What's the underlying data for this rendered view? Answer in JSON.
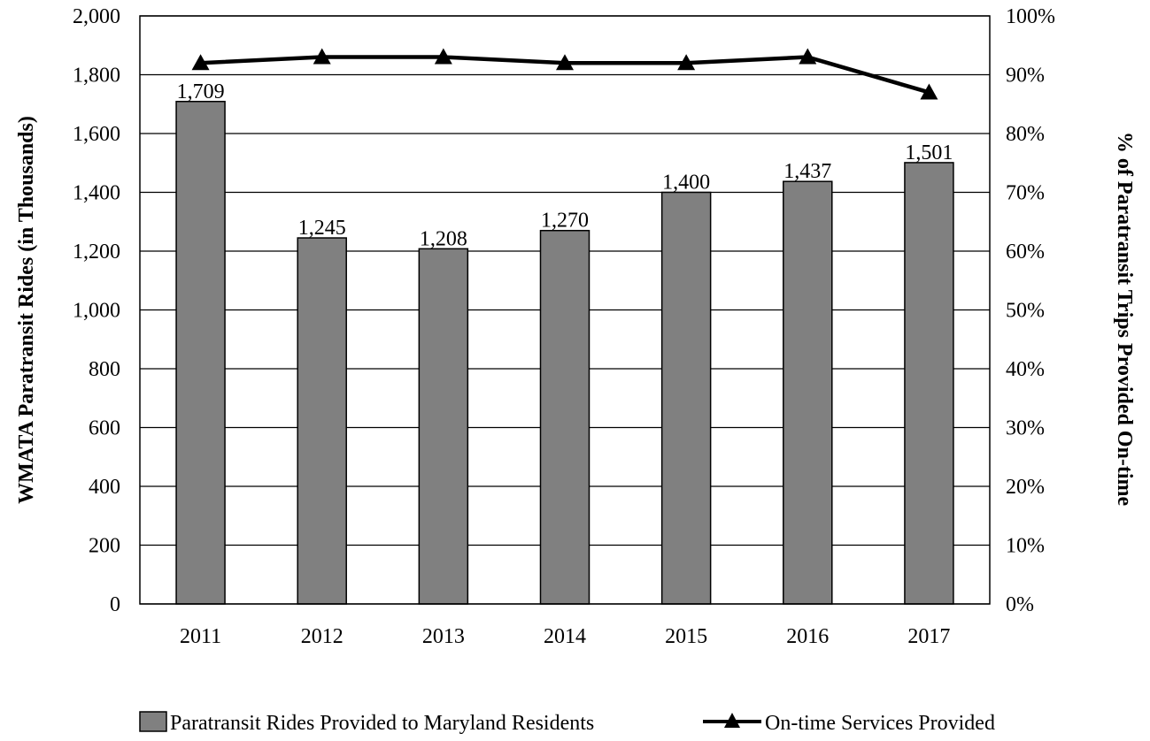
{
  "chart_data": {
    "type": "bar",
    "categories": [
      "2011",
      "2012",
      "2013",
      "2014",
      "2015",
      "2016",
      "2017"
    ],
    "series": [
      {
        "name": "Paratransit Rides Provided to Maryland Residents",
        "type": "bar",
        "axis": "left",
        "values": [
          1709,
          1245,
          1208,
          1270,
          1400,
          1437,
          1501
        ],
        "data_labels": [
          "1,709",
          "1,245",
          "1,208",
          "1,270",
          "1,400",
          "1,437",
          "1,501"
        ],
        "color": "#808080"
      },
      {
        "name": "On-time Services Provided",
        "type": "line",
        "axis": "right",
        "marker": "triangle",
        "values": [
          92,
          93,
          93,
          92,
          92,
          93,
          87
        ],
        "color": "#000000"
      }
    ],
    "ylabel": "WMATA Paratransit Rides (in Thousands)",
    "y2label": "% of Paratransit Trips Provided On-time",
    "ylim": [
      0,
      2000
    ],
    "y2lim": [
      0,
      100
    ],
    "yticks": [
      0,
      200,
      400,
      600,
      800,
      1000,
      1200,
      1400,
      1600,
      1800,
      2000
    ],
    "ytick_labels": [
      "0",
      "200",
      "400",
      "600",
      "800",
      "1,000",
      "1,200",
      "1,400",
      "1,600",
      "1,800",
      "2,000"
    ],
    "y2ticks": [
      0,
      10,
      20,
      30,
      40,
      50,
      60,
      70,
      80,
      90,
      100
    ],
    "y2tick_labels": [
      "0%",
      "10%",
      "20%",
      "30%",
      "40%",
      "50%",
      "60%",
      "70%",
      "80%",
      "90%",
      "100%"
    ],
    "grid": true,
    "legend": "bottom"
  }
}
